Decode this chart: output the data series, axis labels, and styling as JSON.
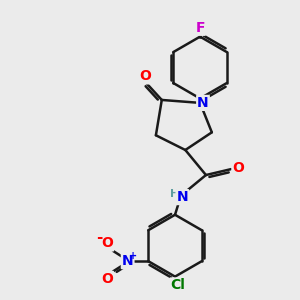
{
  "bg_color": "#ebebeb",
  "bond_color": "#1a1a1a",
  "bond_width": 1.8,
  "atom_colors": {
    "O": "#ff0000",
    "N": "#0000ee",
    "Cl": "#007700",
    "F": "#cc00cc",
    "H": "#5f9ea0",
    "C": "#1a1a1a"
  },
  "figsize": [
    3.0,
    3.0
  ],
  "dpi": 100
}
